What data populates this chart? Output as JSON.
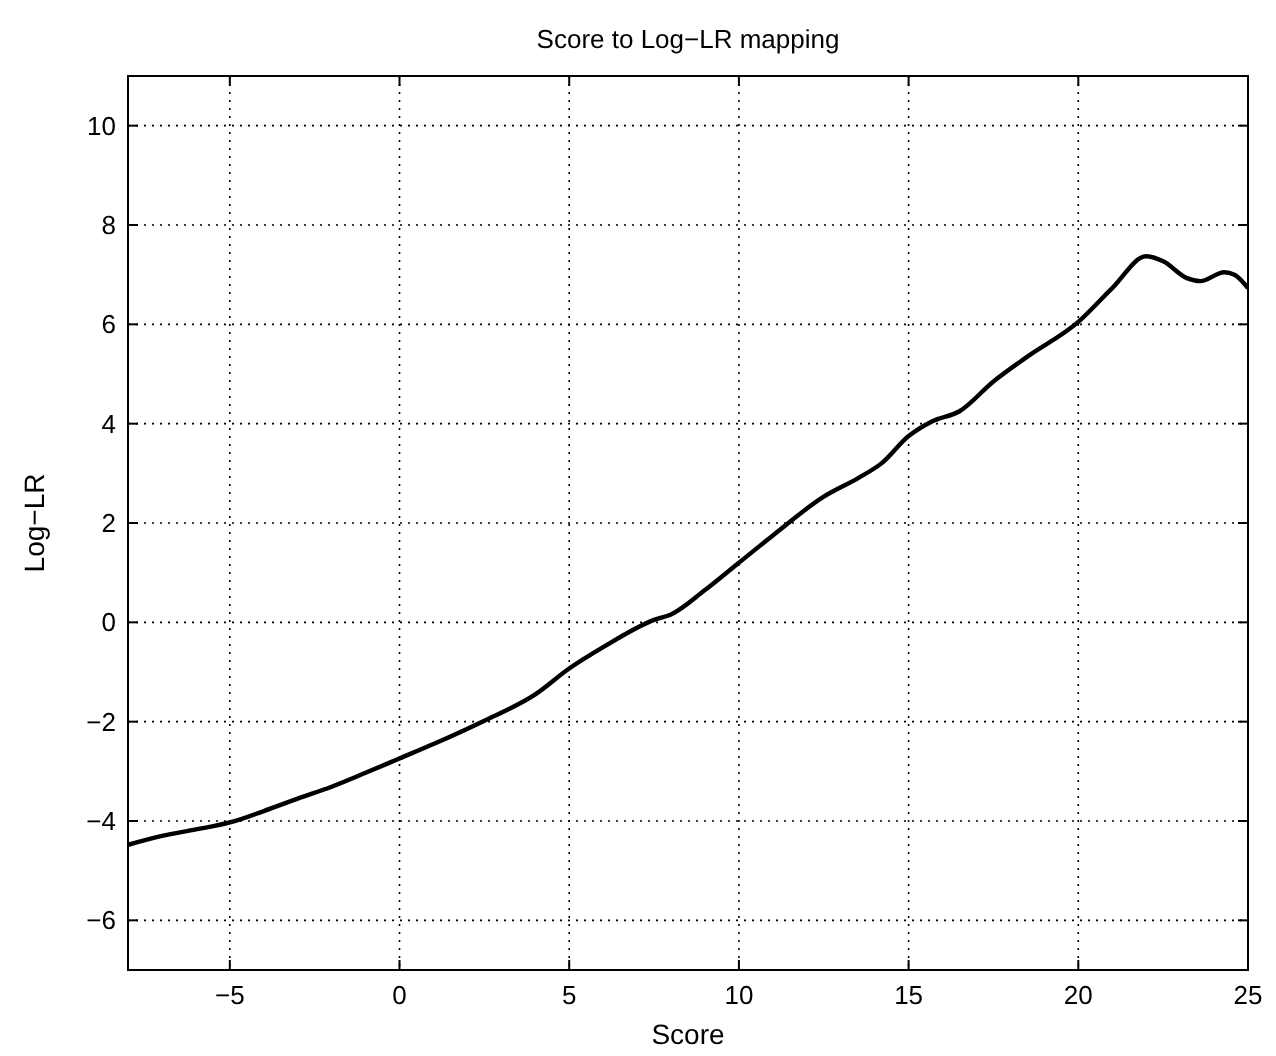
{
  "chart_data": {
    "type": "line",
    "title": "Score to Log−LR mapping",
    "xlabel": "Score",
    "ylabel": "Log−LR",
    "xlim": [
      -8,
      25
    ],
    "xticks": [
      -5,
      0,
      5,
      10,
      15,
      20,
      25
    ],
    "ylim": [
      -7,
      11
    ],
    "yticks": [
      -6,
      -4,
      -2,
      0,
      2,
      4,
      6,
      8,
      10
    ],
    "grid": true,
    "series": [
      {
        "color": "#000000",
        "x": [
          -8,
          -7,
          -6,
          -5,
          -4,
          -3,
          -2,
          -1,
          0,
          1,
          2.5,
          4,
          5,
          6,
          7.5,
          8,
          9,
          10,
          11,
          12.5,
          13.5,
          14.2,
          15,
          15.7,
          16.5,
          17.5,
          18.5,
          20,
          21,
          22,
          22.5,
          23.2,
          23.6,
          24.3,
          24.6,
          25
        ],
        "values": [
          -4.48,
          -4.3,
          -4.17,
          -4.03,
          -3.8,
          -3.55,
          -3.31,
          -3.03,
          -2.74,
          -2.45,
          -1.98,
          -1.45,
          -0.93,
          -0.5,
          0.05,
          0.16,
          0.65,
          1.2,
          1.75,
          2.53,
          2.9,
          3.2,
          3.75,
          4.05,
          4.25,
          4.85,
          5.35,
          6.05,
          6.73,
          7.37,
          7.27,
          6.93,
          6.87,
          7.05,
          7.0,
          6.73
        ]
      }
    ]
  }
}
